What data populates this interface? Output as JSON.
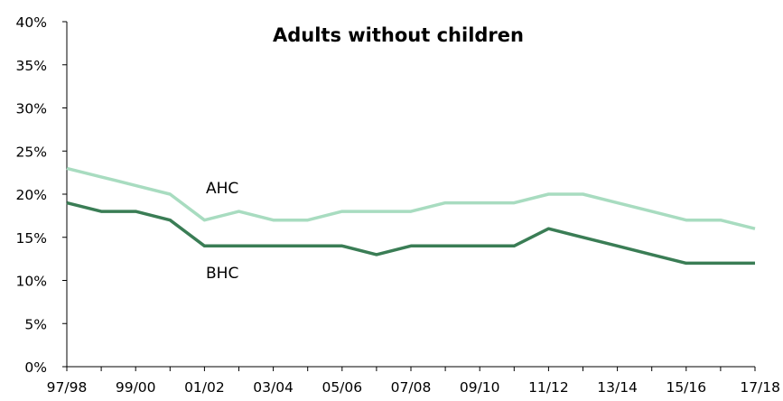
{
  "chart_data": {
    "type": "line",
    "title": "Adults without children",
    "xlabel": "",
    "ylabel": "",
    "x": [
      "97/98",
      "98/99",
      "99/00",
      "00/01",
      "01/02",
      "02/03",
      "03/04",
      "04/05",
      "05/06",
      "06/07",
      "07/08",
      "08/09",
      "09/10",
      "10/11",
      "11/12",
      "12/13",
      "13/14",
      "14/15",
      "15/16",
      "16/17",
      "17/18"
    ],
    "x_tick_labels": [
      "97/98",
      "99/00",
      "01/02",
      "03/04",
      "05/06",
      "07/08",
      "09/10",
      "11/12",
      "13/14",
      "15/16",
      "17/18"
    ],
    "y_tick_labels": [
      "0%",
      "5%",
      "10%",
      "15%",
      "20%",
      "25%",
      "30%",
      "35%",
      "40%"
    ],
    "ylim": [
      0,
      40
    ],
    "grid": false,
    "legend": "none",
    "series": [
      {
        "name": "AHC",
        "color": "#a8dcc0",
        "values": [
          23,
          22,
          21,
          20,
          17,
          18,
          17,
          17,
          18,
          18,
          18,
          19,
          19,
          19,
          20,
          20,
          19,
          18,
          17,
          17,
          16
        ]
      },
      {
        "name": "BHC",
        "color": "#3a7d55",
        "values": [
          19,
          18,
          18,
          17,
          14,
          14,
          14,
          14,
          14,
          13,
          14,
          14,
          14,
          14,
          16,
          15,
          14,
          13,
          12,
          12,
          12
        ]
      }
    ]
  }
}
